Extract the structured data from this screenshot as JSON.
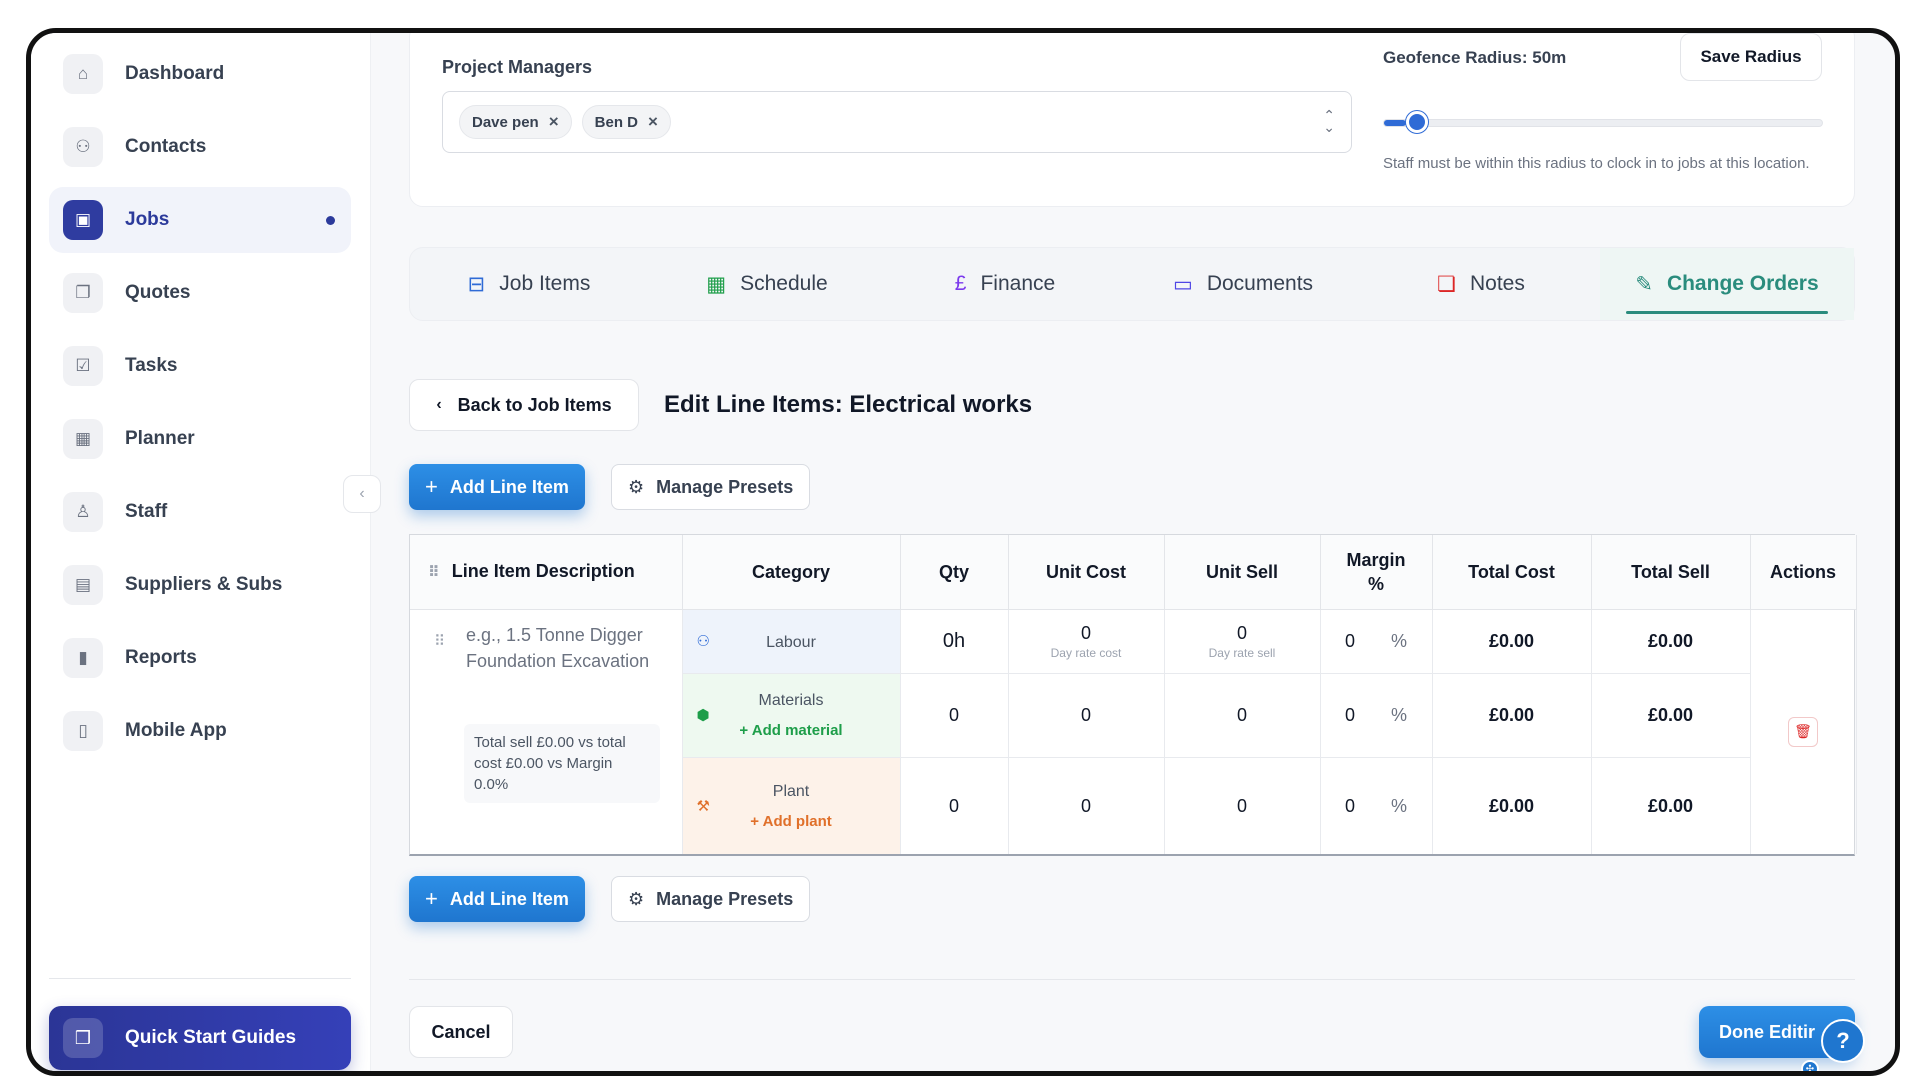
{
  "sidebar": {
    "items": [
      {
        "label": "Dashboard",
        "icon": "home-icon",
        "glyph": "⌂"
      },
      {
        "label": "Contacts",
        "icon": "users-icon",
        "glyph": "👥"
      },
      {
        "label": "Jobs",
        "icon": "briefcase-icon",
        "glyph": "▣",
        "active": true
      },
      {
        "label": "Quotes",
        "icon": "copy-icon",
        "glyph": "❐"
      },
      {
        "label": "Tasks",
        "icon": "checkbox-icon",
        "glyph": "☑"
      },
      {
        "label": "Planner",
        "icon": "calendar-icon",
        "glyph": "▦"
      },
      {
        "label": "Staff",
        "icon": "user-cog-icon",
        "glyph": "♙"
      },
      {
        "label": "Suppliers & Subs",
        "icon": "building-icon",
        "glyph": "▤"
      },
      {
        "label": "Reports",
        "icon": "bar-chart-icon",
        "glyph": "▮"
      },
      {
        "label": "Mobile App",
        "icon": "smartphone-icon",
        "glyph": "▯"
      }
    ],
    "quick_start": "Quick Start Guides"
  },
  "project_managers": {
    "label": "Project Managers",
    "chips": [
      "Dave pen",
      "Ben D"
    ]
  },
  "geofence": {
    "label": "Geofence Radius: 50m",
    "save_label": "Save Radius",
    "level": 0.05,
    "help": "Staff must be within this radius to clock in to jobs at this location."
  },
  "tabs": [
    {
      "label": "Job Items",
      "glyph": "💼",
      "color": "#2f6bd6"
    },
    {
      "label": "Schedule",
      "glyph": "📅",
      "color": "#1e9e4a"
    },
    {
      "label": "Finance",
      "glyph": "£",
      "color": "#7c3aed"
    },
    {
      "label": "Documents",
      "glyph": "🗀",
      "color": "#4f46e5"
    },
    {
      "label": "Notes",
      "glyph": "🗪",
      "color": "#dc2626"
    },
    {
      "label": "Change Orders",
      "glyph": "✎",
      "color": "#2a8c7d",
      "active": true
    }
  ],
  "header": {
    "back_label": "Back to Job Items",
    "title": "Edit Line Items: Electrical works"
  },
  "actions": {
    "add_line_item": "Add Line Item",
    "manage_presets": "Manage Presets"
  },
  "table": {
    "columns": [
      "Line Item Description",
      "Category",
      "Qty",
      "Unit Cost",
      "Unit Sell",
      "Margin %",
      "Total Cost",
      "Total Sell",
      "Actions"
    ],
    "description_placeholder": "e.g., 1.5 Tonne Digger Foundation Excavation",
    "summary": "Total sell £0.00 vs total cost £0.00 vs Margin 0.0%",
    "rows": [
      {
        "category": "Labour",
        "qty": "0h",
        "unit_cost": "0",
        "unit_cost_sub": "Day rate cost",
        "unit_sell": "0",
        "unit_sell_sub": "Day rate sell",
        "margin": "0",
        "pct": "%",
        "total_cost": "£0.00",
        "total_sell": "£0.00"
      },
      {
        "category": "Materials",
        "add": "+ Add material",
        "qty": "0",
        "unit_cost": "0",
        "unit_sell": "0",
        "margin": "0",
        "pct": "%",
        "total_cost": "£0.00",
        "total_sell": "£0.00"
      },
      {
        "category": "Plant",
        "add": "+ Add plant",
        "qty": "0",
        "unit_cost": "0",
        "unit_sell": "0",
        "margin": "0",
        "pct": "%",
        "total_cost": "£0.00",
        "total_sell": "£0.00"
      }
    ]
  },
  "footer": {
    "cancel": "Cancel",
    "done": "Done Editir"
  }
}
